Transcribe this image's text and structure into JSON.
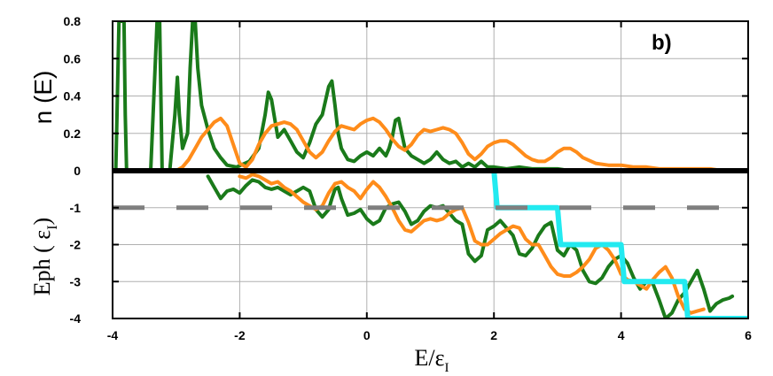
{
  "chart_data": {
    "type": "line",
    "panel_label": "b)",
    "xlabel": {
      "main": "E/ε",
      "sub": "I"
    },
    "ylabel_top": "n (E)",
    "ylabel_bottom": {
      "main": "Eph ( ε",
      "sub": "I",
      "close": ")"
    },
    "xlim": [
      -4,
      6
    ],
    "xticks": [
      -4,
      -2,
      0,
      2,
      4,
      6
    ],
    "xtick_labels": [
      "-4",
      "-2",
      "0",
      "2",
      "4",
      "6"
    ],
    "top_panel": {
      "ylim": [
        0,
        0.8
      ],
      "yticks": [
        0,
        0.2,
        0.4,
        0.6,
        0.8
      ],
      "ytick_labels": [
        "0",
        "0.2",
        "0.4",
        "0.6",
        "0.8"
      ]
    },
    "bottom_panel": {
      "ylim": [
        -4,
        0
      ],
      "yticks": [
        0,
        -1,
        -2,
        -3,
        -4
      ],
      "ytick_labels": [
        "0",
        "-1",
        "-2",
        "-3",
        "-4"
      ]
    },
    "grid": true,
    "colors": {
      "green": "#1a7a1a",
      "orange": "#ff8c1a",
      "cyan": "#22eaf0",
      "gray": "#7f7f7f",
      "black": "#000000"
    },
    "series": [
      {
        "panel": "top",
        "color": "green",
        "x": [
          -3.95,
          -3.93,
          -3.9,
          -3.87,
          -3.82,
          -3.8,
          -3.78,
          -3.72,
          -3.6,
          -3.4,
          -3.3,
          -3.28,
          -3.26,
          -3.22,
          -3.1,
          -3.02,
          -2.98,
          -2.95,
          -2.9,
          -2.82,
          -2.78,
          -2.74,
          -2.7,
          -2.66,
          -2.6,
          -2.5,
          -2.4,
          -2.3,
          -2.2,
          -2.05,
          -1.85,
          -1.7,
          -1.6,
          -1.55,
          -1.5,
          -1.45,
          -1.4,
          -1.3,
          -1.2,
          -1.1,
          -1.0,
          -0.9,
          -0.8,
          -0.7,
          -0.6,
          -0.55,
          -0.5,
          -0.45,
          -0.4,
          -0.3,
          -0.2,
          -0.1,
          0.0,
          0.1,
          0.2,
          0.3,
          0.35,
          0.4,
          0.45,
          0.5,
          0.55,
          0.6,
          0.7,
          0.8,
          0.9,
          1.0,
          1.1,
          1.2,
          1.3,
          1.4,
          1.5,
          1.6,
          1.7,
          1.8,
          1.9,
          2.0,
          2.2,
          2.4,
          2.6,
          2.8,
          3.0,
          3.2,
          3.5,
          4.0,
          4.5,
          5.0,
          5.5,
          6.0
        ],
        "y": [
          0.0,
          0.3,
          0.8,
          0.8,
          0.8,
          0.3,
          0.0,
          0.0,
          0.0,
          0.0,
          0.8,
          0.8,
          0.8,
          0.0,
          0.0,
          0.3,
          0.5,
          0.3,
          0.12,
          0.2,
          0.55,
          0.8,
          0.8,
          0.55,
          0.35,
          0.22,
          0.12,
          0.07,
          0.03,
          0.02,
          0.05,
          0.12,
          0.3,
          0.42,
          0.38,
          0.28,
          0.18,
          0.22,
          0.16,
          0.1,
          0.07,
          0.15,
          0.25,
          0.3,
          0.45,
          0.48,
          0.35,
          0.2,
          0.12,
          0.06,
          0.05,
          0.08,
          0.1,
          0.08,
          0.12,
          0.08,
          0.12,
          0.18,
          0.27,
          0.28,
          0.2,
          0.12,
          0.08,
          0.06,
          0.04,
          0.06,
          0.1,
          0.06,
          0.04,
          0.05,
          0.02,
          0.04,
          0.02,
          0.05,
          0.02,
          0.02,
          0.01,
          0.02,
          0.01,
          0.01,
          0.01,
          0.0,
          0.0,
          0.0,
          0.0,
          0.0,
          0.0,
          0.0
        ]
      },
      {
        "panel": "top",
        "color": "orange",
        "x": [
          -3.0,
          -2.9,
          -2.8,
          -2.7,
          -2.6,
          -2.5,
          -2.4,
          -2.3,
          -2.2,
          -2.1,
          -2.0,
          -1.9,
          -1.8,
          -1.7,
          -1.6,
          -1.5,
          -1.4,
          -1.3,
          -1.2,
          -1.1,
          -1.0,
          -0.9,
          -0.8,
          -0.7,
          -0.6,
          -0.5,
          -0.4,
          -0.3,
          -0.2,
          -0.1,
          0.0,
          0.1,
          0.2,
          0.3,
          0.4,
          0.5,
          0.6,
          0.7,
          0.8,
          0.9,
          1.0,
          1.1,
          1.2,
          1.3,
          1.4,
          1.5,
          1.6,
          1.7,
          1.8,
          1.9,
          2.0,
          2.1,
          2.2,
          2.3,
          2.4,
          2.5,
          2.6,
          2.7,
          2.8,
          2.9,
          3.0,
          3.1,
          3.2,
          3.3,
          3.4,
          3.6,
          3.8,
          4.0,
          4.2,
          4.4,
          4.6,
          4.8,
          5.0,
          5.2,
          5.4,
          5.6,
          5.8,
          6.0
        ],
        "y": [
          0.0,
          0.02,
          0.06,
          0.12,
          0.18,
          0.22,
          0.26,
          0.28,
          0.24,
          0.14,
          0.04,
          0.02,
          0.06,
          0.14,
          0.2,
          0.24,
          0.25,
          0.26,
          0.25,
          0.22,
          0.16,
          0.1,
          0.07,
          0.1,
          0.16,
          0.21,
          0.24,
          0.23,
          0.22,
          0.25,
          0.27,
          0.28,
          0.26,
          0.22,
          0.17,
          0.13,
          0.11,
          0.14,
          0.19,
          0.22,
          0.21,
          0.22,
          0.23,
          0.22,
          0.2,
          0.15,
          0.09,
          0.06,
          0.09,
          0.13,
          0.15,
          0.16,
          0.16,
          0.14,
          0.11,
          0.08,
          0.06,
          0.05,
          0.05,
          0.07,
          0.1,
          0.12,
          0.12,
          0.1,
          0.07,
          0.04,
          0.03,
          0.03,
          0.02,
          0.02,
          0.01,
          0.01,
          0.01,
          0.01,
          0.01,
          0.0,
          0.0,
          0.0
        ]
      },
      {
        "panel": "bottom",
        "color": "green",
        "x": [
          -2.5,
          -2.4,
          -2.3,
          -2.2,
          -2.1,
          -2.0,
          -1.9,
          -1.8,
          -1.7,
          -1.6,
          -1.5,
          -1.4,
          -1.3,
          -1.2,
          -1.1,
          -1.0,
          -0.9,
          -0.8,
          -0.7,
          -0.6,
          -0.55,
          -0.5,
          -0.45,
          -0.4,
          -0.3,
          -0.2,
          -0.1,
          0.0,
          0.1,
          0.2,
          0.3,
          0.4,
          0.5,
          0.6,
          0.7,
          0.8,
          0.9,
          1.0,
          1.1,
          1.2,
          1.3,
          1.4,
          1.5,
          1.6,
          1.7,
          1.8,
          1.9,
          2.0,
          2.1,
          2.2,
          2.3,
          2.4,
          2.5,
          2.6,
          2.7,
          2.8,
          2.9,
          3.0,
          3.1,
          3.2,
          3.3,
          3.4,
          3.5,
          3.6,
          3.7,
          3.8,
          3.9,
          4.0,
          4.1,
          4.2,
          4.3,
          4.4,
          4.5,
          4.6,
          4.7,
          4.8,
          4.9,
          5.0,
          5.1,
          5.2,
          5.3,
          5.4,
          5.5,
          5.6,
          5.7,
          5.75
        ],
        "y": [
          -0.15,
          -0.45,
          -0.75,
          -0.55,
          -0.5,
          -0.6,
          -0.4,
          -0.25,
          -0.3,
          -0.45,
          -0.5,
          -0.45,
          -0.55,
          -0.65,
          -0.55,
          -0.45,
          -0.55,
          -1.05,
          -1.25,
          -1.05,
          -0.75,
          -0.5,
          -0.45,
          -0.75,
          -1.2,
          -1.15,
          -1.05,
          -1.3,
          -1.45,
          -1.35,
          -1.0,
          -0.9,
          -0.85,
          -1.1,
          -1.45,
          -1.35,
          -1.1,
          -0.95,
          -1.0,
          -0.95,
          -1.15,
          -1.35,
          -1.45,
          -2.25,
          -2.45,
          -2.3,
          -1.6,
          -1.5,
          -1.35,
          -1.55,
          -1.75,
          -2.25,
          -2.3,
          -2.1,
          -1.75,
          -1.5,
          -1.4,
          -2.15,
          -2.3,
          -2.0,
          -2.15,
          -2.7,
          -3.0,
          -3.05,
          -2.9,
          -2.6,
          -2.4,
          -2.3,
          -2.5,
          -2.9,
          -3.2,
          -3.0,
          -3.05,
          -3.5,
          -4.0,
          -3.85,
          -3.5,
          -3.3,
          -3.0,
          -2.7,
          -3.2,
          -3.8,
          -3.6,
          -3.5,
          -3.45,
          -3.4
        ]
      },
      {
        "panel": "bottom",
        "color": "orange",
        "x": [
          -2.0,
          -1.9,
          -1.8,
          -1.7,
          -1.6,
          -1.5,
          -1.4,
          -1.3,
          -1.2,
          -1.1,
          -1.0,
          -0.9,
          -0.8,
          -0.7,
          -0.6,
          -0.5,
          -0.4,
          -0.3,
          -0.2,
          -0.1,
          0.0,
          0.1,
          0.2,
          0.3,
          0.4,
          0.5,
          0.6,
          0.7,
          0.8,
          0.9,
          1.0,
          1.1,
          1.2,
          1.3,
          1.4,
          1.5,
          1.6,
          1.7,
          1.8,
          1.9,
          2.0,
          2.1,
          2.2,
          2.3,
          2.4,
          2.5,
          2.6,
          2.7,
          2.8,
          2.9,
          3.0,
          3.1,
          3.2,
          3.3,
          3.4,
          3.5,
          3.6,
          3.7,
          3.8,
          3.9,
          4.0,
          4.1,
          4.2,
          4.3,
          4.4,
          4.5,
          4.6,
          4.7,
          4.8,
          4.9,
          5.0,
          5.1,
          5.2,
          5.3
        ],
        "y": [
          -0.15,
          -0.2,
          -0.1,
          -0.15,
          -0.25,
          -0.35,
          -0.3,
          -0.45,
          -0.55,
          -0.7,
          -0.85,
          -0.95,
          -1.05,
          -0.95,
          -0.6,
          -0.35,
          -0.3,
          -0.45,
          -0.55,
          -0.75,
          -0.5,
          -0.3,
          -0.45,
          -0.7,
          -1.0,
          -1.35,
          -1.6,
          -1.65,
          -1.5,
          -1.35,
          -1.3,
          -1.35,
          -1.3,
          -1.15,
          -1.05,
          -1.0,
          -1.4,
          -1.9,
          -2.0,
          -2.0,
          -1.85,
          -1.7,
          -1.6,
          -1.5,
          -1.55,
          -1.85,
          -2.0,
          -2.0,
          -2.3,
          -2.6,
          -2.8,
          -2.85,
          -2.85,
          -2.75,
          -2.6,
          -2.4,
          -2.1,
          -2.0,
          -2.15,
          -2.4,
          -2.8,
          -2.95,
          -3.0,
          -3.1,
          -3.2,
          -2.95,
          -2.75,
          -2.6,
          -2.9,
          -3.4,
          -3.75,
          -3.85,
          -3.8,
          -3.75
        ]
      },
      {
        "panel": "bottom",
        "color": "cyan",
        "x": [
          2.0,
          2.05,
          3.0,
          3.05,
          4.0,
          4.05,
          5.0,
          5.05,
          5.2,
          6.0
        ],
        "y": [
          0.0,
          -1.0,
          -1.0,
          -2.0,
          -2.0,
          -3.0,
          -3.0,
          -4.0,
          -4.0,
          -4.0
        ]
      }
    ],
    "reference_lines": [
      {
        "panel": "bottom",
        "y": 0,
        "color": "black",
        "style": "solid"
      },
      {
        "panel": "bottom",
        "y": -1,
        "color": "gray",
        "style": "dashed"
      }
    ]
  }
}
